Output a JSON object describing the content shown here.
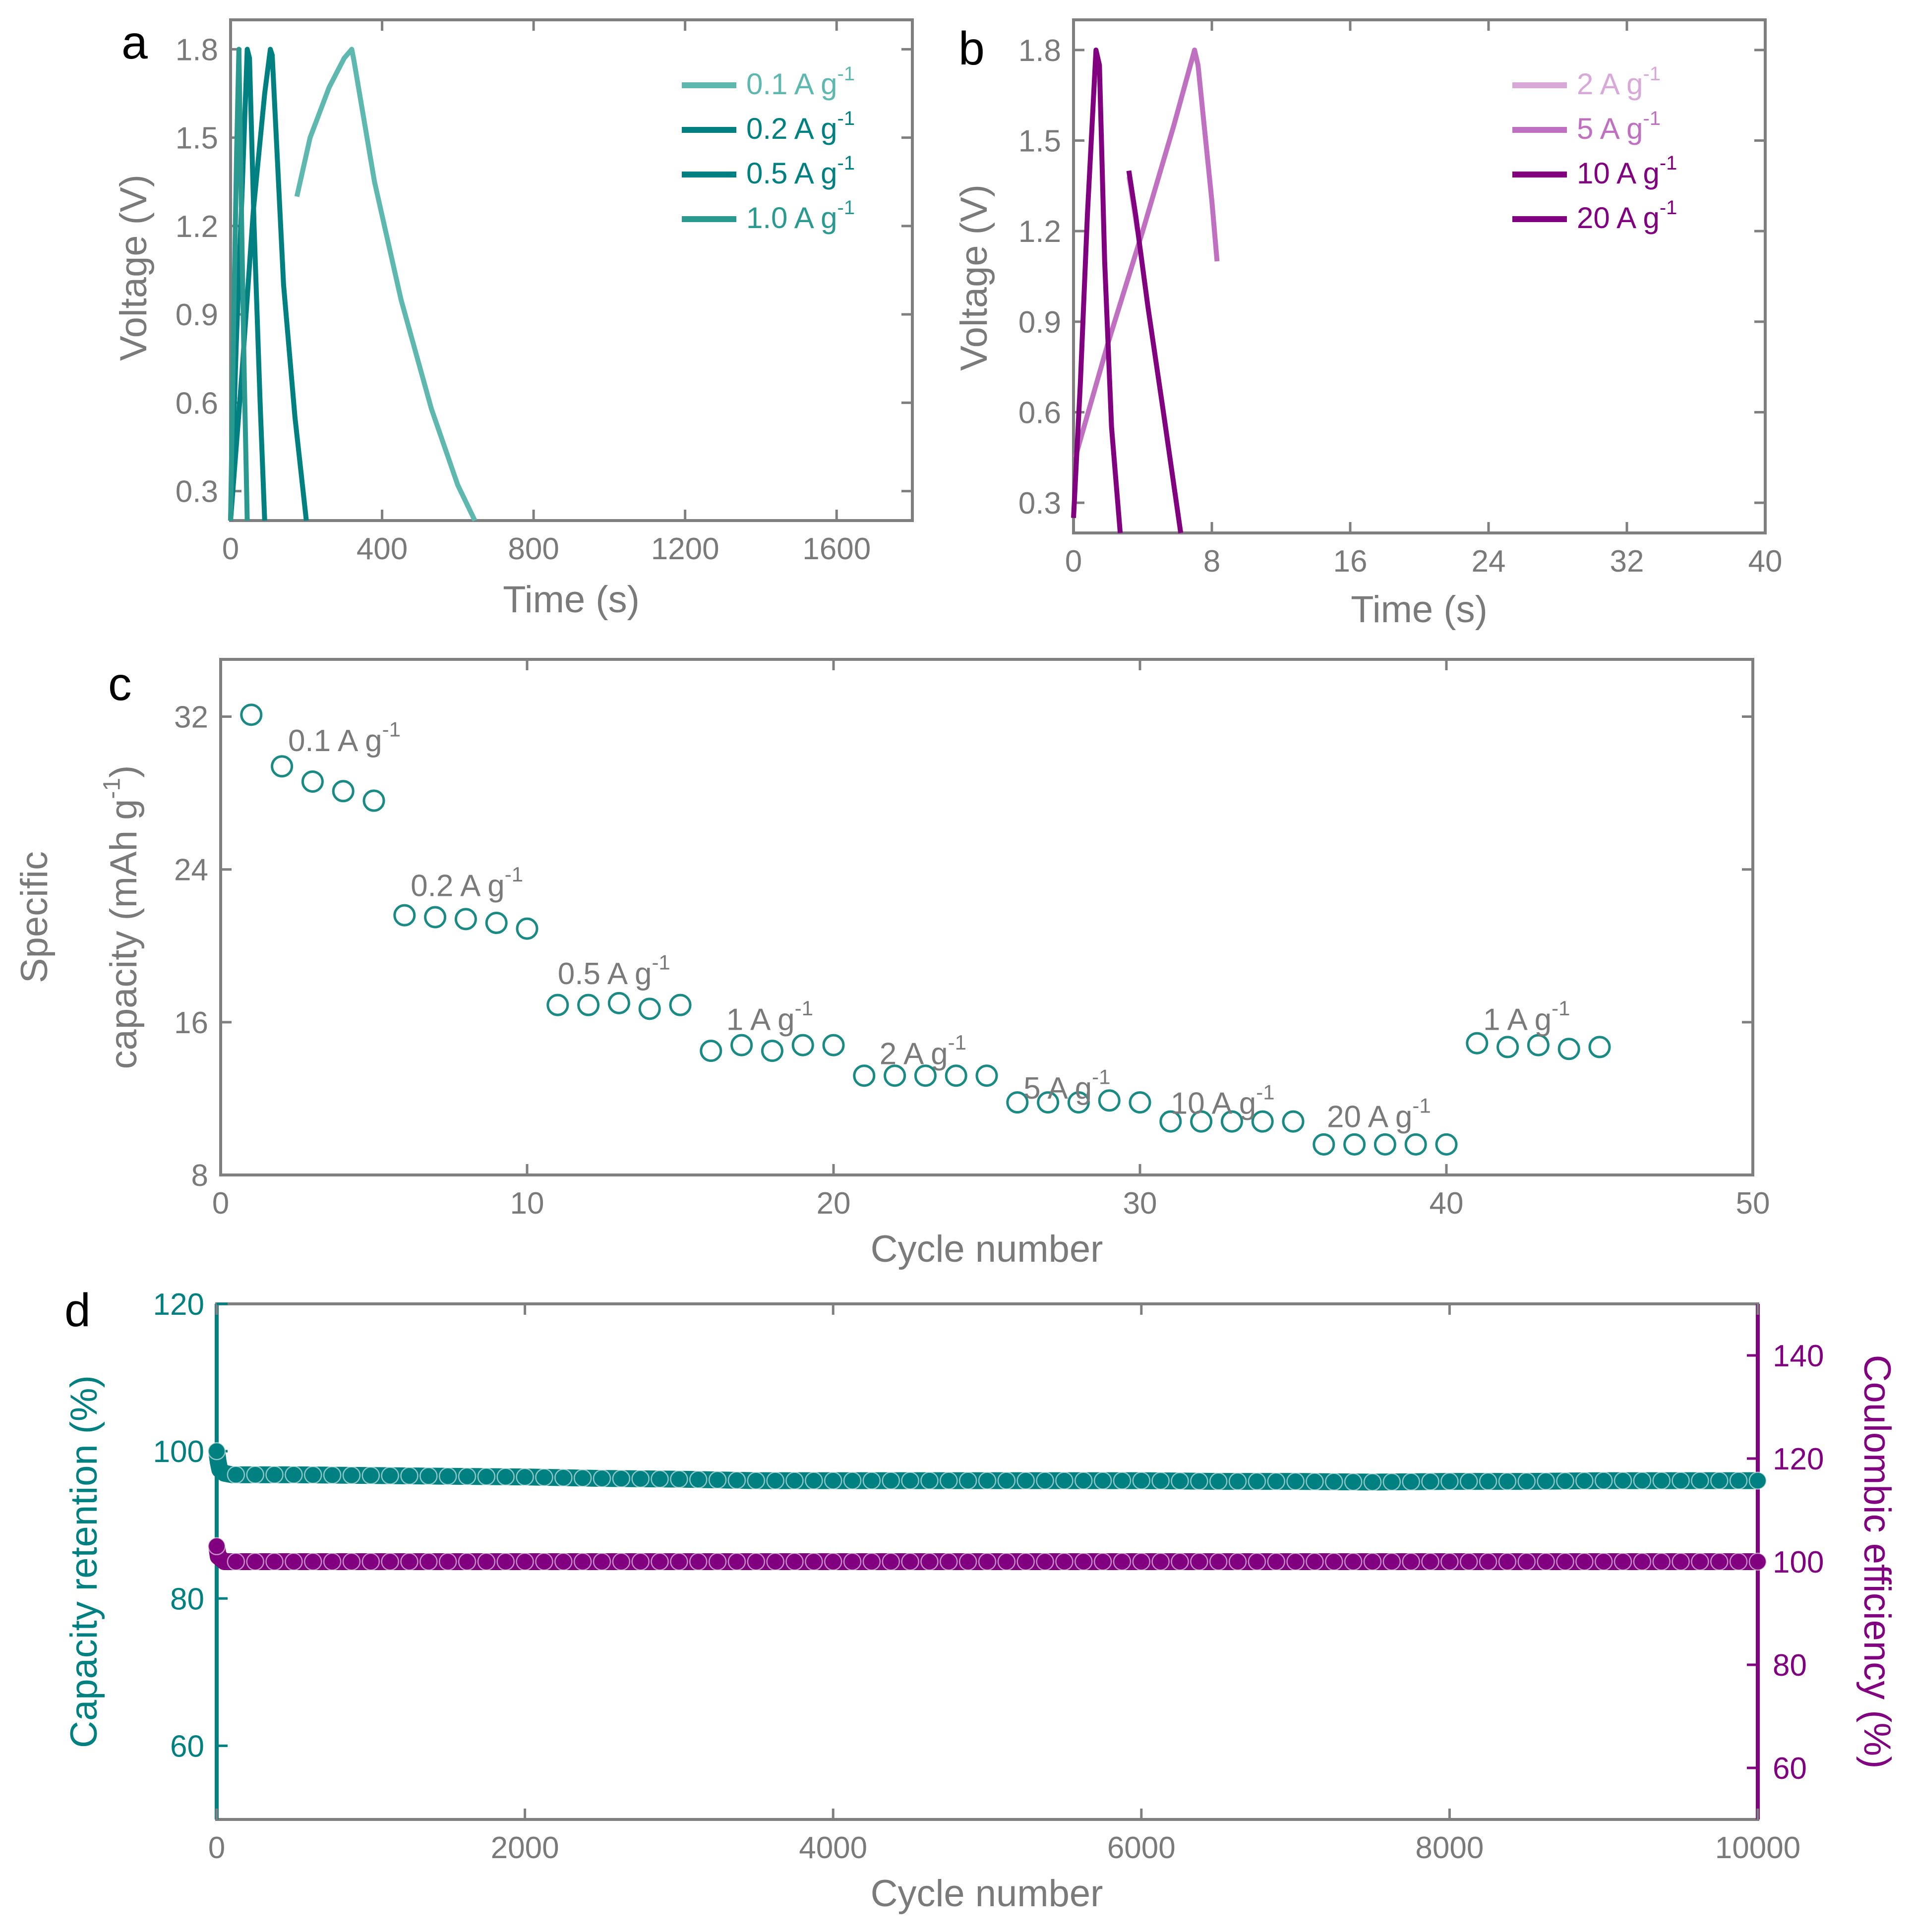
{
  "colors": {
    "teal": "#008080",
    "teal_light": "#5fb8b0",
    "purple": "#800080",
    "purple_light": "#c070c0",
    "axis": "#7f7f7f",
    "text": "#7a7a7a"
  },
  "chart_data": [
    {
      "panel": "a",
      "type": "line",
      "xlabel": "Time (s)",
      "ylabel": "Voltage (V)",
      "xlim": [
        0,
        1800
      ],
      "ylim": [
        0.2,
        1.9
      ],
      "xticks": [
        "0",
        "400",
        "800",
        "1200",
        "1600"
      ],
      "yticks": [
        "0.3",
        "0.6",
        "0.9",
        "1.2",
        "1.5",
        "1.8"
      ],
      "legend": [
        "0.1 A g-1",
        "0.2 A g-1",
        "0.5 A g-1",
        "1.0 A g-1"
      ],
      "series": [
        {
          "name": "0.1 A g-1",
          "color": "#5fb8b0",
          "x": [
            175,
            210,
            260,
            300,
            320,
            326,
            380,
            450,
            530,
            600,
            645
          ],
          "y": [
            1.3,
            1.5,
            1.67,
            1.77,
            1.8,
            1.76,
            1.35,
            0.95,
            0.58,
            0.32,
            0.2
          ]
        },
        {
          "name": "0.2 A g-1",
          "color": "#008080",
          "x": [
            0,
            30,
            60,
            90,
            105,
            110,
            140,
            170,
            200
          ],
          "y": [
            0.2,
            0.7,
            1.25,
            1.65,
            1.8,
            1.78,
            1.0,
            0.55,
            0.2
          ]
        },
        {
          "name": "0.5 A g-1",
          "color": "#008080",
          "x": [
            0,
            15,
            30,
            44,
            50,
            62,
            78,
            90
          ],
          "y": [
            0.2,
            0.8,
            1.3,
            1.8,
            1.77,
            1.2,
            0.6,
            0.2
          ]
        },
        {
          "name": "1.0 A g-1",
          "color": "#2a9a90",
          "x": [
            0,
            8,
            16,
            22,
            28,
            36,
            44
          ],
          "y": [
            0.2,
            0.85,
            1.45,
            1.8,
            1.3,
            0.7,
            0.2
          ]
        }
      ]
    },
    {
      "panel": "b",
      "type": "line",
      "xlabel": "Time (s)",
      "ylabel": "Voltage (V)",
      "xlim": [
        0,
        40
      ],
      "ylim": [
        0.2,
        1.9
      ],
      "xticks": [
        "0",
        "8",
        "16",
        "24",
        "32",
        "40"
      ],
      "yticks": [
        "0.3",
        "0.6",
        "0.9",
        "1.2",
        "1.5",
        "1.8"
      ],
      "legend": [
        "2 A g-1",
        "5 A g-1",
        "10 A g-1",
        "20 A g-1"
      ],
      "series": [
        {
          "name": "2 A g-1",
          "color": "#d8a8d8",
          "x": [
            3.2,
            3.7
          ],
          "y": [
            1.38,
            1.2
          ]
        },
        {
          "name": "5 A g-1",
          "color": "#c070c0",
          "x": [
            0.1,
            2.0,
            4.0,
            5.8,
            7.0,
            7.2,
            8.0,
            8.3
          ],
          "y": [
            0.45,
            0.83,
            1.2,
            1.55,
            1.8,
            1.75,
            1.3,
            1.1
          ]
        },
        {
          "name": "10 A g-1",
          "color": "#800080",
          "x": [
            3.2,
            3.6,
            4.3,
            5.2,
            6.2
          ],
          "y": [
            1.4,
            1.25,
            0.95,
            0.6,
            0.2
          ]
        },
        {
          "name": "20 A g-1",
          "color": "#800080",
          "x": [
            0.0,
            0.4,
            0.8,
            1.3,
            1.5,
            1.8,
            2.2,
            2.7
          ],
          "y": [
            0.25,
            0.7,
            1.25,
            1.8,
            1.75,
            1.1,
            0.55,
            0.2
          ]
        }
      ]
    },
    {
      "panel": "c",
      "type": "scatter",
      "xlabel": "Cycle number",
      "ylabel_lines": [
        "Specific",
        "capacity (mAh g-1)"
      ],
      "xlim": [
        0,
        50
      ],
      "ylim": [
        8,
        35
      ],
      "xticks": [
        "0",
        "10",
        "20",
        "30",
        "40",
        "50"
      ],
      "yticks": [
        "8",
        "16",
        "24",
        "32"
      ],
      "annotations": [
        {
          "text": "0.1 A g-1",
          "x": 2.2,
          "y": 30.2
        },
        {
          "text": "0.2 A g-1",
          "x": 6.2,
          "y": 22.6
        },
        {
          "text": "0.5 A g-1",
          "x": 11.0,
          "y": 18.0
        },
        {
          "text": "1 A g-1",
          "x": 16.5,
          "y": 15.6
        },
        {
          "text": "2 A g-1",
          "x": 21.5,
          "y": 13.8
        },
        {
          "text": "5 A g-1",
          "x": 26.2,
          "y": 12.0
        },
        {
          "text": "10 A g-1",
          "x": 31.0,
          "y": 11.2
        },
        {
          "text": "20 A g-1",
          "x": 36.1,
          "y": 10.5
        },
        {
          "text": "1 A g-1",
          "x": 41.2,
          "y": 15.6
        }
      ],
      "x": [
        1,
        2,
        3,
        4,
        5,
        6,
        7,
        8,
        9,
        10,
        11,
        12,
        13,
        14,
        15,
        16,
        17,
        18,
        19,
        20,
        21,
        22,
        23,
        24,
        25,
        26,
        27,
        28,
        29,
        30,
        31,
        32,
        33,
        34,
        35,
        36,
        37,
        38,
        39,
        40,
        41,
        42,
        43,
        44,
        45
      ],
      "values": [
        32.1,
        29.4,
        28.6,
        28.1,
        27.6,
        21.6,
        21.5,
        21.4,
        21.2,
        20.9,
        16.9,
        16.9,
        17.0,
        16.7,
        16.9,
        14.5,
        14.8,
        14.5,
        14.8,
        14.8,
        13.2,
        13.2,
        13.2,
        13.2,
        13.2,
        11.8,
        11.8,
        11.8,
        11.9,
        11.8,
        10.8,
        10.8,
        10.8,
        10.8,
        10.8,
        9.6,
        9.6,
        9.6,
        9.6,
        9.6,
        14.9,
        14.7,
        14.8,
        14.6,
        14.7
      ]
    },
    {
      "panel": "d",
      "type": "scatter",
      "xlabel": "Cycle number",
      "ylabel": "Capacity retention (%)",
      "ylabel_right": "Coulombic efficiency (%)",
      "xlim": [
        0,
        10000
      ],
      "ylim": [
        50,
        120
      ],
      "ylim_right": [
        50,
        150
      ],
      "xticks": [
        "0",
        "2000",
        "4000",
        "6000",
        "8000",
        "10000"
      ],
      "yticks": [
        "60",
        "80",
        "100",
        "120"
      ],
      "yticks_right": [
        "60",
        "80",
        "100",
        "120",
        "140"
      ],
      "series": [
        {
          "name": "Capacity retention",
          "axis": "left",
          "color": "#008080",
          "x": [
            0,
            10,
            20,
            50,
            100,
            500,
            1000,
            1500,
            2000,
            2500,
            3000,
            3500,
            4000,
            4500,
            5000,
            5500,
            6000,
            6500,
            7000,
            7500,
            8000,
            8500,
            9000,
            9500,
            10000
          ],
          "values": [
            100,
            98.5,
            97.5,
            97.0,
            96.8,
            96.8,
            96.7,
            96.6,
            96.5,
            96.3,
            96.2,
            96.0,
            96.0,
            96.0,
            96.0,
            96.0,
            96.0,
            95.9,
            95.9,
            95.8,
            95.9,
            95.9,
            96.0,
            96.0,
            96.0
          ]
        },
        {
          "name": "Coulombic efficiency",
          "axis": "right",
          "color": "#800080",
          "x": [
            0,
            10,
            50,
            500,
            1000,
            1500,
            2000,
            2500,
            3000,
            3500,
            4000,
            4500,
            5000,
            5500,
            6000,
            6500,
            7000,
            7500,
            8000,
            8500,
            9000,
            9500,
            10000
          ],
          "values": [
            103,
            101,
            100,
            100,
            100,
            100,
            100,
            100,
            100,
            100,
            100,
            100,
            100,
            100,
            100,
            100,
            100,
            100,
            100,
            100,
            100,
            100,
            100
          ]
        }
      ]
    }
  ]
}
